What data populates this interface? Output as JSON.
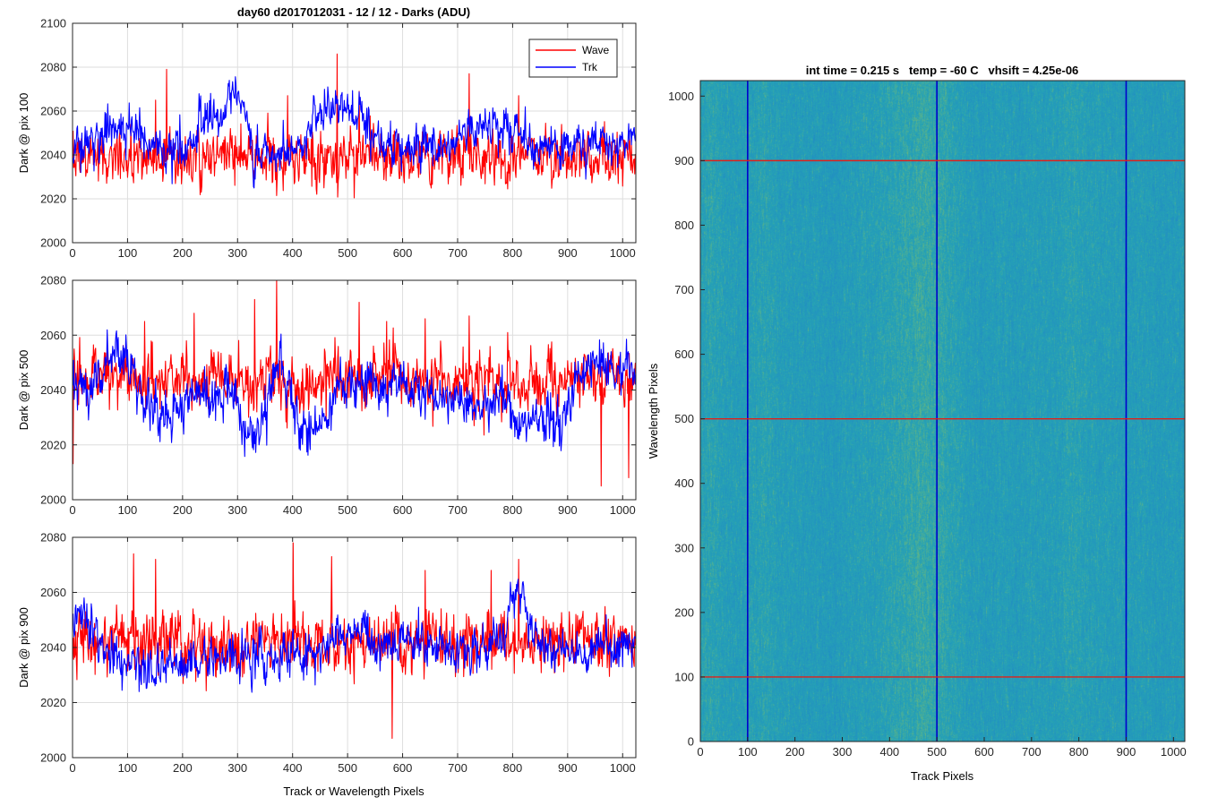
{
  "figure": {
    "title": "day60 d2017012031 - 12 / 12 - Darks (ADU)",
    "colors": {
      "wave": "#ff0000",
      "trk": "#0000ff",
      "grid": "#dedede",
      "axis": "#262626",
      "heat_low": "#1f86c8",
      "heat_mid": "#26a2b5",
      "heat_high": "#8fc45e"
    }
  },
  "chart_data": [
    {
      "type": "line",
      "title": "day60 d2017012031 - 12 / 12 - Darks (ADU)",
      "xlabel": "",
      "ylabel": "Dark @ pix 100",
      "xlim": [
        0,
        1024
      ],
      "ylim": [
        2000,
        2100
      ],
      "xticks": [
        0,
        100,
        200,
        300,
        400,
        500,
        600,
        700,
        800,
        900,
        1000
      ],
      "yticks": [
        2000,
        2020,
        2040,
        2060,
        2080,
        2100
      ],
      "grid": true,
      "legend": {
        "position": "top-right",
        "entries": [
          "Wave",
          "Trk"
        ]
      },
      "series": [
        {
          "name": "Wave",
          "mean": 2039,
          "noise": 9,
          "peaks": [
            [
              0,
              2051
            ],
            [
              150,
              2065
            ],
            [
              170,
              2079
            ],
            [
              390,
              2067
            ],
            [
              480,
              2086
            ],
            [
              520,
              2069
            ],
            [
              720,
              2077
            ],
            [
              810,
              2067
            ]
          ],
          "range": [
            2013,
            2086
          ]
        },
        {
          "name": "Trk",
          "mean": 2045,
          "noise": 7,
          "bumps": [
            [
              0,
              2044,
              40
            ],
            [
              100,
              2056,
              40
            ],
            [
              160,
              2040,
              50
            ],
            [
              260,
              2060,
              30
            ],
            [
              300,
              2072,
              15
            ],
            [
              370,
              2040,
              40
            ],
            [
              480,
              2060,
              40
            ],
            [
              620,
              2045,
              60
            ],
            [
              760,
              2052,
              40
            ],
            [
              900,
              2044,
              60
            ],
            [
              1024,
              2046,
              40
            ]
          ],
          "range": [
            2023,
            2083
          ]
        }
      ]
    },
    {
      "type": "line",
      "xlabel": "",
      "ylabel": "Dark @ pix 500",
      "xlim": [
        0,
        1024
      ],
      "ylim": [
        2000,
        2080
      ],
      "xticks": [
        0,
        100,
        200,
        300,
        400,
        500,
        600,
        700,
        800,
        900,
        1000
      ],
      "yticks": [
        2000,
        2020,
        2040,
        2060,
        2080
      ],
      "grid": true,
      "series": [
        {
          "name": "Wave",
          "mean": 2044,
          "noise": 8,
          "peaks": [
            [
              0,
              2013
            ],
            [
              130,
              2065
            ],
            [
              220,
              2068
            ],
            [
              330,
              2073
            ],
            [
              370,
              2080
            ],
            [
              520,
              2072
            ],
            [
              570,
              2065
            ],
            [
              640,
              2066
            ],
            [
              720,
              2067
            ],
            [
              960,
              2005
            ],
            [
              1010,
              2008
            ]
          ],
          "range": [
            2005,
            2080
          ]
        },
        {
          "name": "Trk",
          "mean": 2040,
          "noise": 6,
          "bumps": [
            [
              0,
              2040,
              40
            ],
            [
              80,
              2053,
              30
            ],
            [
              150,
              2032,
              40
            ],
            [
              260,
              2040,
              40
            ],
            [
              330,
              2022,
              30
            ],
            [
              370,
              2050,
              20
            ],
            [
              430,
              2025,
              25
            ],
            [
              560,
              2042,
              60
            ],
            [
              720,
              2036,
              60
            ],
            [
              850,
              2028,
              50
            ],
            [
              960,
              2050,
              40
            ],
            [
              1024,
              2045,
              30
            ]
          ],
          "range": [
            2008,
            2069
          ]
        }
      ]
    },
    {
      "type": "line",
      "xlabel": "Track or Wavelength Pixels",
      "ylabel": "Dark @ pix 900",
      "xlim": [
        0,
        1024
      ],
      "ylim": [
        2000,
        2080
      ],
      "xticks": [
        0,
        100,
        200,
        300,
        400,
        500,
        600,
        700,
        800,
        900,
        1000
      ],
      "yticks": [
        2000,
        2020,
        2040,
        2060,
        2080
      ],
      "grid": true,
      "series": [
        {
          "name": "Wave",
          "mean": 2042,
          "noise": 8,
          "peaks": [
            [
              110,
              2074
            ],
            [
              150,
              2072
            ],
            [
              400,
              2078
            ],
            [
              470,
              2073
            ],
            [
              580,
              2007
            ],
            [
              640,
              2068
            ],
            [
              760,
              2068
            ],
            [
              810,
              2072
            ]
          ],
          "range": [
            2007,
            2078
          ]
        },
        {
          "name": "Trk",
          "mean": 2040,
          "noise": 6,
          "bumps": [
            [
              0,
              2052,
              30
            ],
            [
              150,
              2034,
              60
            ],
            [
              260,
              2036,
              60
            ],
            [
              420,
              2038,
              50
            ],
            [
              550,
              2044,
              60
            ],
            [
              700,
              2040,
              60
            ],
            [
              810,
              2062,
              15
            ],
            [
              900,
              2040,
              60
            ],
            [
              1024,
              2040,
              30
            ]
          ],
          "range": [
            2012,
            2070
          ]
        }
      ]
    },
    {
      "type": "heatmap",
      "title": "int time = 0.215 s   temp = -60 C   vhsift = 4.25e-06",
      "xlabel": "Track Pixels",
      "ylabel": "Wavelength Pixels",
      "xlim": [
        0,
        1024
      ],
      "ylim": [
        0,
        1024
      ],
      "xticks": [
        0,
        100,
        200,
        300,
        400,
        500,
        600,
        700,
        800,
        900,
        1000
      ],
      "yticks": [
        0,
        100,
        200,
        300,
        400,
        500,
        600,
        700,
        800,
        900,
        1000
      ],
      "overlay_lines": {
        "vertical": {
          "color": "blue",
          "x": [
            100,
            500,
            900
          ]
        },
        "horizontal": {
          "color": "red",
          "y": [
            100,
            500,
            900
          ]
        }
      }
    }
  ]
}
